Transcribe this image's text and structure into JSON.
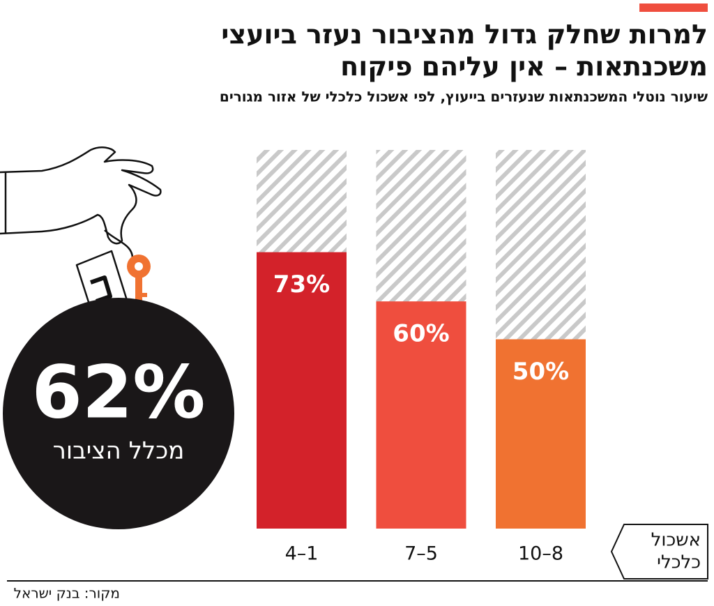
{
  "chart_data": {
    "type": "bar",
    "title": [
      "למרות שחלק גדול מהציבור נעזר ביועצי",
      "משכנתאות – אין עליהם פיקוח"
    ],
    "subtitle": "שיעור נוטלי המשכנתאות שנעזרים בייעוץ, לפי אשכול כלכלי של אזור מגורים",
    "x_label": [
      "אשכול",
      "כלכלי"
    ],
    "categories": [
      "4–1",
      "7–5",
      "10–8"
    ],
    "values": [
      73,
      60,
      50
    ],
    "value_labels": [
      "73%",
      "60%",
      "50%"
    ],
    "colors": [
      "#d3222a",
      "#ef4e3e",
      "#f07231"
    ],
    "ylim": [
      0,
      100
    ],
    "highlight": {
      "value": 62,
      "label": "62%",
      "text": "מכלל הציבור"
    },
    "source": "מקור: בנק ישראל"
  }
}
